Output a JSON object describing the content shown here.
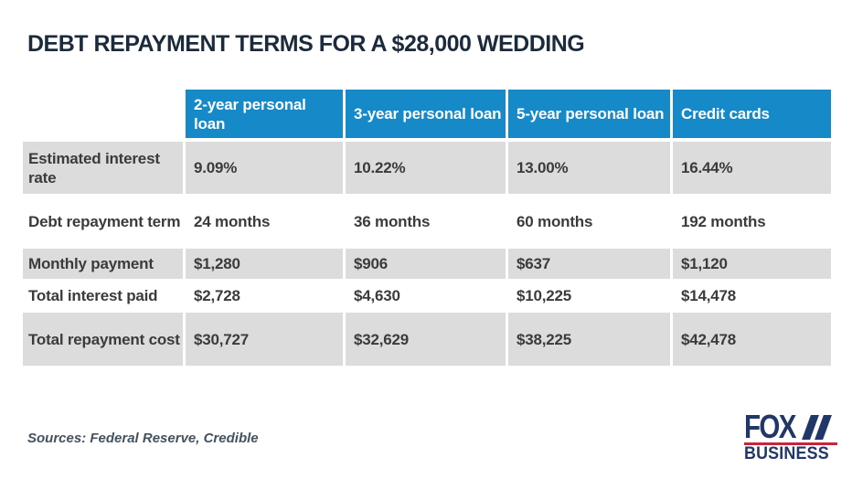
{
  "theme": {
    "title_navy": "#1c2b3c",
    "header_blue": "#1689c9",
    "row_gray": "#dcdcdc",
    "cell_text": "#3b3b3b",
    "source_gray": "#44525f",
    "logo_navy": "#203767",
    "logo_red": "#c8253c"
  },
  "title": "DEBT REPAYMENT TERMS FOR A $28,000 WEDDING",
  "table": {
    "columns": [
      "2-year personal loan",
      "3-year personal loan",
      "5-year personal loan",
      "Credit cards"
    ],
    "rows": [
      {
        "label": "Estimated interest rate",
        "values": [
          "9.09%",
          "10.22%",
          "13.00%",
          "16.44%"
        ]
      },
      {
        "label": "Debt repayment term",
        "values": [
          "24 months",
          "36 months",
          "60 months",
          "192 months"
        ]
      },
      {
        "label": "Monthly payment",
        "values": [
          "$1,280",
          "$906",
          "$637",
          "$1,120"
        ]
      },
      {
        "label": "Total interest paid",
        "values": [
          "$2,728",
          "$4,630",
          "$10,225",
          "$14,478"
        ]
      },
      {
        "label": "Total repayment cost",
        "values": [
          "$30,727",
          "$32,629",
          "$38,225",
          "$42,478"
        ]
      }
    ]
  },
  "footer": {
    "sources": "Sources: Federal Reserve, Credible"
  },
  "logo": {
    "word": "FOX",
    "sub": "BUSINESS"
  },
  "chart_data": {
    "type": "table",
    "title": "DEBT REPAYMENT TERMS FOR A $28,000 WEDDING",
    "columns": [
      "",
      "2-year personal loan",
      "3-year personal loan",
      "5-year personal loan",
      "Credit cards"
    ],
    "rows": [
      [
        "Estimated interest rate",
        "9.09%",
        "10.22%",
        "13.00%",
        "16.44%"
      ],
      [
        "Debt repayment term",
        "24 months",
        "36 months",
        "60 months",
        "192 months"
      ],
      [
        "Monthly payment",
        "$1,280",
        "$906",
        "$637",
        "$1,120"
      ],
      [
        "Total interest paid",
        "$2,728",
        "$4,630",
        "$10,225",
        "$14,478"
      ],
      [
        "Total repayment cost",
        "$30,727",
        "$32,629",
        "$38,225",
        "$42,478"
      ]
    ],
    "source": "Sources: Federal Reserve, Credible",
    "layout": {
      "zebra_rows": "gray on rows 1,3,5",
      "header_fill": "#1689c9",
      "grid": "white 3px column separators"
    }
  }
}
